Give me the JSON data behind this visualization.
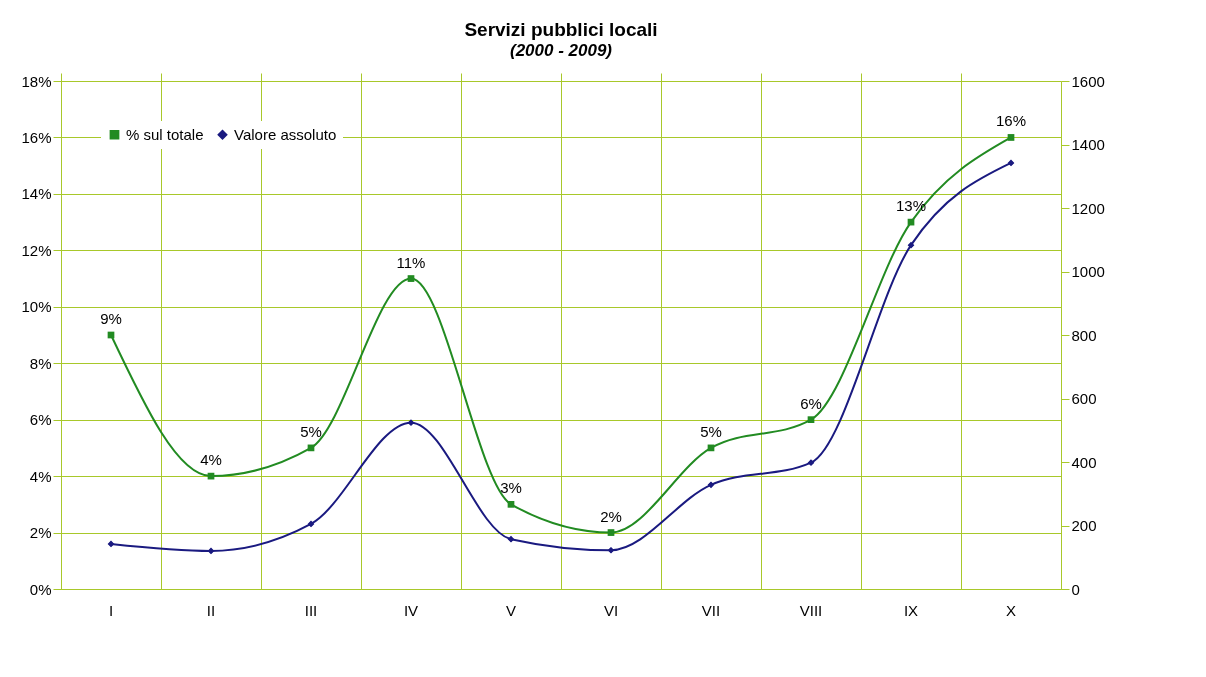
{
  "chart_data": {
    "type": "line",
    "title": "Servizi pubblici locali",
    "subtitle": "(2000 - 2009)",
    "categories": [
      "I",
      "II",
      "III",
      "IV",
      "V",
      "VI",
      "VII",
      "VIII",
      "IX",
      "X"
    ],
    "series": [
      {
        "name": "% sul totale",
        "color": "#228B22",
        "marker": "square",
        "values": [
          9,
          4,
          5,
          11,
          3,
          2,
          5,
          6,
          13,
          16
        ],
        "value_labels": [
          "9%",
          "4%",
          "5%",
          "11%",
          "3%",
          "2%",
          "5%",
          "6%",
          "13%",
          "16%"
        ]
      },
      {
        "name": "Valore assoluto",
        "color": "#1a1a80",
        "marker": "diamond",
        "axis": "y2",
        "values": [
          142,
          120,
          205,
          524,
          157,
          122,
          328,
          398,
          1083,
          1342
        ]
      }
    ],
    "ylim": [
      0,
      18
    ],
    "yticks": [
      {
        "value": 0,
        "label": "0%"
      },
      {
        "value": 2,
        "label": "2%"
      },
      {
        "value": 4,
        "label": "4%"
      },
      {
        "value": 6,
        "label": "6%"
      },
      {
        "value": 8,
        "label": "8%"
      },
      {
        "value": 10,
        "label": "10%"
      },
      {
        "value": 12,
        "label": "12%"
      },
      {
        "value": 14,
        "label": "14%"
      },
      {
        "value": 16,
        "label": "16%"
      },
      {
        "value": 18,
        "label": "18%"
      }
    ],
    "y2lim": [
      0,
      1600
    ],
    "y2ticks": [
      0,
      200,
      400,
      600,
      800,
      1000,
      1200,
      1400,
      1600
    ],
    "grid": true,
    "legend": "top left",
    "line_style": "solid"
  }
}
